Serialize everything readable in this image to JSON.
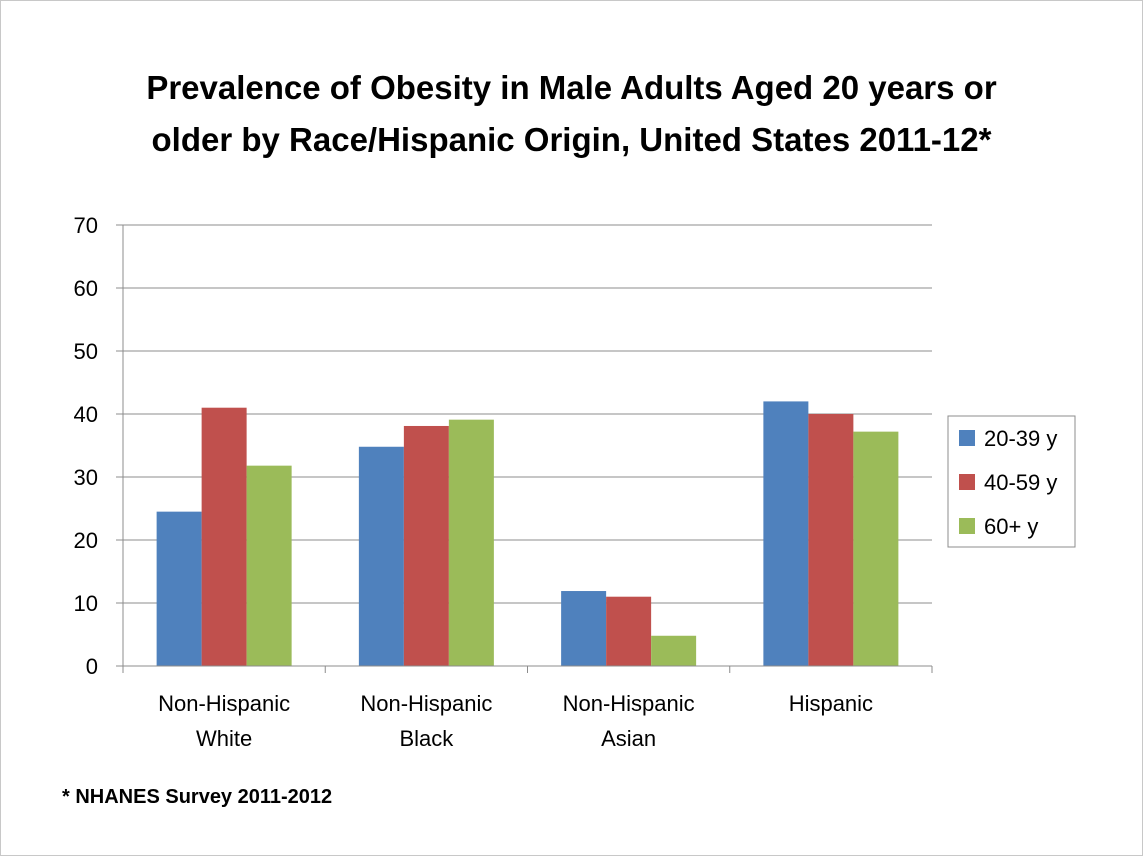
{
  "chart_data": {
    "type": "bar",
    "title_lines": [
      "Prevalence of Obesity in Male Adults Aged 20 years or",
      "older by Race/Hispanic Origin, United States 2011-12*"
    ],
    "categories": [
      [
        "Non-Hispanic",
        "White"
      ],
      [
        "Non-Hispanic",
        "Black"
      ],
      [
        "Non-Hispanic",
        "Asian"
      ],
      [
        "Hispanic"
      ]
    ],
    "series": [
      {
        "name": "20-39 y",
        "color": "#4f81bd",
        "values": [
          24.5,
          34.8,
          11.9,
          42.0
        ]
      },
      {
        "name": "40-59 y",
        "color": "#c0504d",
        "values": [
          41.0,
          38.1,
          11.0,
          40.0
        ]
      },
      {
        "name": "60+ y",
        "color": "#9bbb59",
        "values": [
          31.8,
          39.1,
          4.8,
          37.2
        ]
      }
    ],
    "ylim": [
      0,
      70
    ],
    "yticks": [
      0,
      10,
      20,
      30,
      40,
      50,
      60,
      70
    ],
    "grid": true,
    "legend_position": "right"
  },
  "footnote": "* NHANES Survey 2011-2012"
}
